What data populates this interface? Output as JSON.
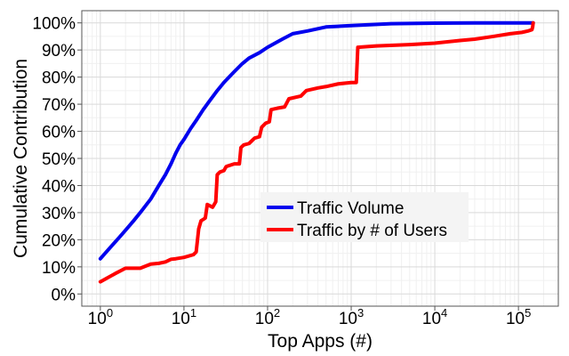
{
  "chart_data": {
    "type": "line",
    "xlabel": "Top Apps (#)",
    "ylabel": "Cumulative Contribution",
    "xscale": "log",
    "xlim": [
      0.6,
      300000
    ],
    "ylim": [
      -0.045,
      1.045
    ],
    "x_ticks": [
      {
        "value": 1,
        "base": "10",
        "exp": "0"
      },
      {
        "value": 10,
        "base": "10",
        "exp": "1"
      },
      {
        "value": 100,
        "base": "10",
        "exp": "2"
      },
      {
        "value": 1000,
        "base": "10",
        "exp": "3"
      },
      {
        "value": 10000,
        "base": "10",
        "exp": "4"
      },
      {
        "value": 100000,
        "base": "10",
        "exp": "5"
      }
    ],
    "y_ticks": [
      {
        "value": 0.0,
        "label": "0%"
      },
      {
        "value": 0.1,
        "label": "10%"
      },
      {
        "value": 0.2,
        "label": "20%"
      },
      {
        "value": 0.3,
        "label": "30%"
      },
      {
        "value": 0.4,
        "label": "40%"
      },
      {
        "value": 0.5,
        "label": "50%"
      },
      {
        "value": 0.6,
        "label": "60%"
      },
      {
        "value": 0.7,
        "label": "70%"
      },
      {
        "value": 0.8,
        "label": "80%"
      },
      {
        "value": 0.9,
        "label": "90%"
      },
      {
        "value": 1.0,
        "label": "100%"
      }
    ],
    "grid": true,
    "legend": "center-right",
    "series": [
      {
        "name": "Traffic Volume",
        "color": "#0000ee",
        "points": [
          [
            1,
            0.13
          ],
          [
            1.3,
            0.17
          ],
          [
            1.7,
            0.21
          ],
          [
            2,
            0.235
          ],
          [
            2.5,
            0.27
          ],
          [
            3,
            0.3
          ],
          [
            4,
            0.35
          ],
          [
            5,
            0.4
          ],
          [
            6,
            0.44
          ],
          [
            7,
            0.48
          ],
          [
            8,
            0.52
          ],
          [
            9,
            0.55
          ],
          [
            10,
            0.57
          ],
          [
            12,
            0.61
          ],
          [
            14,
            0.64
          ],
          [
            17,
            0.68
          ],
          [
            20,
            0.71
          ],
          [
            25,
            0.75
          ],
          [
            30,
            0.78
          ],
          [
            40,
            0.82
          ],
          [
            50,
            0.85
          ],
          [
            60,
            0.87
          ],
          [
            80,
            0.89
          ],
          [
            100,
            0.91
          ],
          [
            150,
            0.94
          ],
          [
            200,
            0.96
          ],
          [
            300,
            0.97
          ],
          [
            500,
            0.985
          ],
          [
            1000,
            0.99
          ],
          [
            3000,
            0.997
          ],
          [
            10000,
            0.999
          ],
          [
            30000,
            1.0
          ],
          [
            150000,
            1.0
          ]
        ]
      },
      {
        "name": "Traffic by # of Users",
        "color": "#ff0000",
        "points": [
          [
            1,
            0.045
          ],
          [
            1.5,
            0.075
          ],
          [
            2,
            0.095
          ],
          [
            3,
            0.095
          ],
          [
            4,
            0.11
          ],
          [
            5,
            0.113
          ],
          [
            6,
            0.118
          ],
          [
            7,
            0.128
          ],
          [
            8,
            0.13
          ],
          [
            10,
            0.135
          ],
          [
            13,
            0.145
          ],
          [
            14,
            0.155
          ],
          [
            15,
            0.24
          ],
          [
            16,
            0.27
          ],
          [
            17,
            0.275
          ],
          [
            18,
            0.28
          ],
          [
            19,
            0.33
          ],
          [
            22,
            0.32
          ],
          [
            24,
            0.34
          ],
          [
            25,
            0.44
          ],
          [
            27,
            0.45
          ],
          [
            30,
            0.455
          ],
          [
            32,
            0.47
          ],
          [
            40,
            0.48
          ],
          [
            46,
            0.48
          ],
          [
            48,
            0.54
          ],
          [
            52,
            0.55
          ],
          [
            60,
            0.555
          ],
          [
            70,
            0.575
          ],
          [
            80,
            0.58
          ],
          [
            85,
            0.615
          ],
          [
            95,
            0.63
          ],
          [
            105,
            0.635
          ],
          [
            110,
            0.68
          ],
          [
            130,
            0.685
          ],
          [
            160,
            0.69
          ],
          [
            180,
            0.72
          ],
          [
            250,
            0.73
          ],
          [
            290,
            0.75
          ],
          [
            400,
            0.76
          ],
          [
            500,
            0.765
          ],
          [
            700,
            0.775
          ],
          [
            1000,
            0.78
          ],
          [
            1150,
            0.78
          ],
          [
            1200,
            0.91
          ],
          [
            2000,
            0.915
          ],
          [
            5000,
            0.92
          ],
          [
            10000,
            0.925
          ],
          [
            20000,
            0.935
          ],
          [
            30000,
            0.94
          ],
          [
            50000,
            0.95
          ],
          [
            80000,
            0.96
          ],
          [
            110000,
            0.965
          ],
          [
            130000,
            0.97
          ],
          [
            145000,
            0.975
          ],
          [
            148000,
            0.985
          ],
          [
            150000,
            1.0
          ]
        ]
      }
    ]
  }
}
